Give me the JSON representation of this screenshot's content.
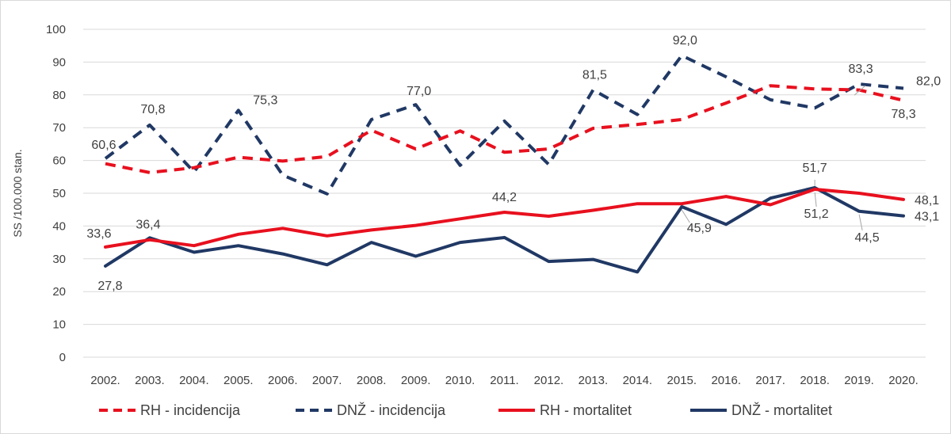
{
  "chart_data": {
    "type": "line",
    "ylabel": "SS /100.000 stan.",
    "ylim": [
      0,
      100
    ],
    "y_ticks": [
      0,
      10,
      20,
      30,
      40,
      50,
      60,
      70,
      80,
      90,
      100
    ],
    "y_tick_labels": [
      "0",
      "10",
      "20",
      "30",
      "40",
      "50",
      "60",
      "70",
      "80",
      "90",
      "100"
    ],
    "grid": "horizontal",
    "legend": "bottom",
    "categories": [
      "2002.",
      "2003.",
      "2004.",
      "2005.",
      "2006.",
      "2007.",
      "2008.",
      "2009.",
      "2010.",
      "2011.",
      "2012.",
      "2013.",
      "2014.",
      "2015.",
      "2016.",
      "2017.",
      "2018.",
      "2019.",
      "2020."
    ],
    "series": [
      {
        "name": "RH - incidencija",
        "color": "#e8101e",
        "style": "dashed",
        "values": [
          59.0,
          56.3,
          57.8,
          61.0,
          59.8,
          61.2,
          69.2,
          63.5,
          69.0,
          62.5,
          63.5,
          69.8,
          71.0,
          72.5,
          77.5,
          82.8,
          81.8,
          81.5,
          78.3
        ],
        "labels": [
          null,
          null,
          null,
          null,
          null,
          null,
          null,
          null,
          null,
          null,
          null,
          null,
          null,
          null,
          null,
          null,
          null,
          null,
          "78,3"
        ]
      },
      {
        "name": "DNŽ - incidencija",
        "color": "#203864",
        "style": "dashed",
        "values": [
          60.6,
          70.8,
          56.5,
          75.3,
          55.5,
          49.8,
          72.5,
          77.0,
          58.5,
          72.0,
          58.8,
          81.5,
          74.0,
          92.0,
          85.5,
          78.5,
          76.0,
          83.3,
          82.0
        ],
        "labels": [
          "60,6",
          "70,8",
          null,
          "75,3",
          null,
          null,
          null,
          "77,0",
          null,
          null,
          null,
          "81,5",
          null,
          "92,0",
          null,
          null,
          null,
          "83,3",
          "82,0"
        ]
      },
      {
        "name": "RH - mortalitet",
        "color": "#e8101e",
        "style": "solid",
        "values": [
          33.6,
          35.8,
          34.0,
          37.5,
          39.3,
          37.0,
          38.8,
          40.2,
          42.2,
          44.2,
          43.0,
          44.8,
          46.8,
          46.8,
          49.0,
          46.5,
          51.2,
          50.0,
          48.1
        ],
        "labels": [
          "33,6",
          null,
          null,
          null,
          null,
          null,
          null,
          null,
          null,
          "44,2",
          null,
          null,
          null,
          null,
          null,
          null,
          "51,2",
          null,
          "48,1"
        ]
      },
      {
        "name": "DNŽ - mortalitet",
        "color": "#203864",
        "style": "solid",
        "values": [
          27.8,
          36.4,
          32.0,
          34.0,
          31.5,
          28.2,
          35.0,
          30.8,
          35.0,
          36.5,
          29.2,
          29.8,
          26.0,
          45.9,
          40.5,
          48.5,
          51.7,
          44.5,
          43.1
        ],
        "labels": [
          "27,8",
          "36,4",
          null,
          null,
          null,
          null,
          null,
          null,
          null,
          null,
          null,
          null,
          null,
          "45,9",
          null,
          null,
          "51,7",
          "44,5",
          "43,1"
        ]
      }
    ]
  }
}
